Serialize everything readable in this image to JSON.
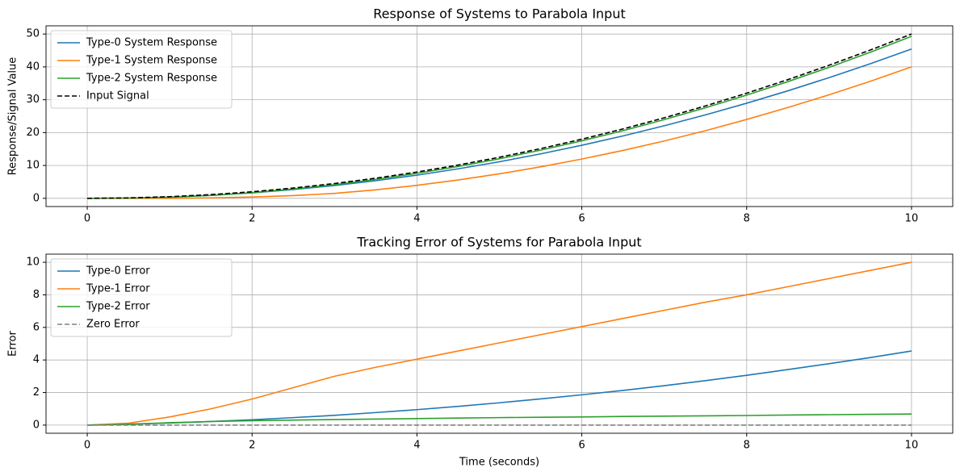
{
  "chart_data": [
    {
      "type": "line",
      "title": "Response of Systems to Parabola Input",
      "ylabel": "Response/Signal Value",
      "x": [
        0,
        0.5,
        1,
        1.5,
        2,
        2.5,
        3,
        3.5,
        4,
        4.5,
        5,
        5.5,
        6,
        6.5,
        7,
        7.5,
        8,
        8.5,
        9,
        9.5,
        10
      ],
      "series": [
        {
          "name": "Type-0 System Response",
          "color": "#1f77b4",
          "linestyle": "solid",
          "values": [
            0,
            0.07,
            0.37,
            0.9,
            1.67,
            2.67,
            3.9,
            5.36,
            7.05,
            8.98,
            11.13,
            13.52,
            16.14,
            18.99,
            22.08,
            25.39,
            28.94,
            32.72,
            36.73,
            40.97,
            45.45
          ]
        },
        {
          "name": "Type-1 System Response",
          "color": "#ff7f0e",
          "linestyle": "solid",
          "values": [
            0,
            0.01,
            0,
            0.13,
            0.4,
            0.83,
            1.5,
            2.58,
            3.95,
            5.58,
            7.45,
            9.58,
            11.95,
            14.58,
            17.45,
            20.58,
            24,
            27.63,
            31.5,
            35.63,
            40
          ]
        },
        {
          "name": "Type-2 System Response",
          "color": "#2ca02c",
          "linestyle": "solid",
          "values": [
            0,
            0.08,
            0.35,
            0.9,
            1.73,
            2.82,
            4.16,
            5.76,
            7.6,
            9.7,
            12.04,
            14.65,
            17.5,
            20.6,
            23.95,
            27.56,
            31.41,
            35.51,
            39.86,
            44.47,
            49.32
          ]
        },
        {
          "name": "Input Signal",
          "color": "#000000",
          "linestyle": "dashed",
          "values": [
            0,
            0.125,
            0.5,
            1.125,
            2,
            3.125,
            4.5,
            6.125,
            8,
            10.125,
            12.5,
            15.125,
            18,
            21.125,
            24.5,
            28.125,
            32,
            36.125,
            40.5,
            45.125,
            50
          ]
        }
      ],
      "xlim": [
        -0.5,
        10.5
      ],
      "xticks": [
        0,
        2,
        4,
        6,
        8,
        10
      ],
      "ylim": [
        -2.5,
        52.5
      ],
      "yticks": [
        0,
        10,
        20,
        30,
        40,
        50
      ],
      "grid": true,
      "legend": "upper-left"
    },
    {
      "type": "line",
      "title": "Tracking Error of Systems for Parabola Input",
      "xlabel": "Time (seconds)",
      "ylabel": "Error",
      "x": [
        0,
        0.5,
        1,
        1.5,
        2,
        2.5,
        3,
        3.5,
        4,
        4.5,
        5,
        5.5,
        6,
        6.5,
        7,
        7.5,
        8,
        8.5,
        9,
        9.5,
        10
      ],
      "series": [
        {
          "name": "Type-0 Error",
          "color": "#1f77b4",
          "linestyle": "solid",
          "values": [
            0,
            0.06,
            0.13,
            0.22,
            0.33,
            0.46,
            0.6,
            0.77,
            0.95,
            1.15,
            1.37,
            1.61,
            1.86,
            2.13,
            2.42,
            2.73,
            3.06,
            3.41,
            3.77,
            4.15,
            4.55
          ]
        },
        {
          "name": "Type-1 Error",
          "color": "#ff7f0e",
          "linestyle": "solid",
          "values": [
            0,
            0.12,
            0.5,
            1.0,
            1.6,
            2.3,
            3.0,
            3.55,
            4.05,
            4.55,
            5.05,
            5.55,
            6.05,
            6.55,
            7.05,
            7.55,
            8.0,
            8.5,
            9.0,
            9.5,
            10.0
          ]
        },
        {
          "name": "Type-2 Error",
          "color": "#2ca02c",
          "linestyle": "solid",
          "values": [
            0,
            0.05,
            0.15,
            0.22,
            0.27,
            0.31,
            0.34,
            0.37,
            0.4,
            0.43,
            0.46,
            0.48,
            0.5,
            0.53,
            0.55,
            0.57,
            0.59,
            0.62,
            0.64,
            0.66,
            0.68
          ]
        },
        {
          "name": "Zero Error",
          "color": "#808080",
          "linestyle": "dashed",
          "values": [
            0,
            0,
            0,
            0,
            0,
            0,
            0,
            0,
            0,
            0,
            0,
            0,
            0,
            0,
            0,
            0,
            0,
            0,
            0,
            0,
            0
          ]
        }
      ],
      "xlim": [
        -0.5,
        10.5
      ],
      "xticks": [
        0,
        2,
        4,
        6,
        8,
        10
      ],
      "ylim": [
        -0.5,
        10.5
      ],
      "yticks": [
        0,
        2,
        4,
        6,
        8,
        10
      ],
      "grid": true,
      "legend": "upper-left"
    }
  ]
}
